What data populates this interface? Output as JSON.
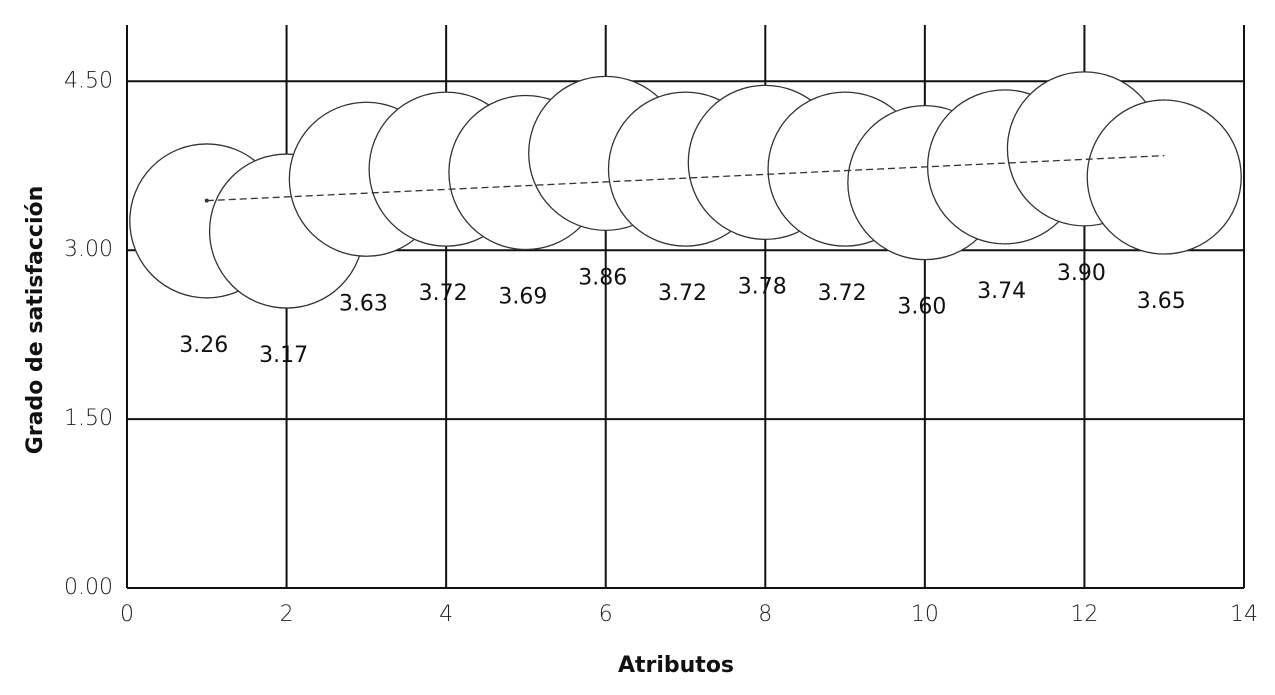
{
  "chart_data": {
    "type": "bubble",
    "x_label": "Atributos",
    "y_label": "Grado de satisfacción",
    "x": [
      1,
      2,
      3,
      4,
      5,
      6,
      7,
      8,
      9,
      10,
      11,
      12,
      13
    ],
    "values": [
      3.26,
      3.17,
      3.63,
      3.72,
      3.69,
      3.86,
      3.72,
      3.78,
      3.72,
      3.6,
      3.74,
      3.9,
      3.65
    ],
    "value_labels": [
      "3.26",
      "3.17",
      "3.63",
      "3.72",
      "3.69",
      "3.86",
      "3.72",
      "3.78",
      "3.72",
      "3.60",
      "3.74",
      "3.90",
      "3.65"
    ],
    "color": "#ffffff",
    "trendline": {
      "x": [
        1,
        13
      ],
      "values": [
        3.44,
        3.84
      ]
    },
    "xlim": [
      0,
      14
    ],
    "xticks": [
      0,
      2,
      4,
      6,
      8,
      10,
      12,
      14
    ],
    "ylim": [
      0,
      5
    ],
    "yticks": [
      {
        "value": 0,
        "label": "0.00"
      },
      {
        "value": 1.5,
        "label": "1.50"
      },
      {
        "value": 3,
        "label": "3.00"
      },
      {
        "value": 4.5,
        "label": "4.50"
      }
    ],
    "grid": true
  }
}
